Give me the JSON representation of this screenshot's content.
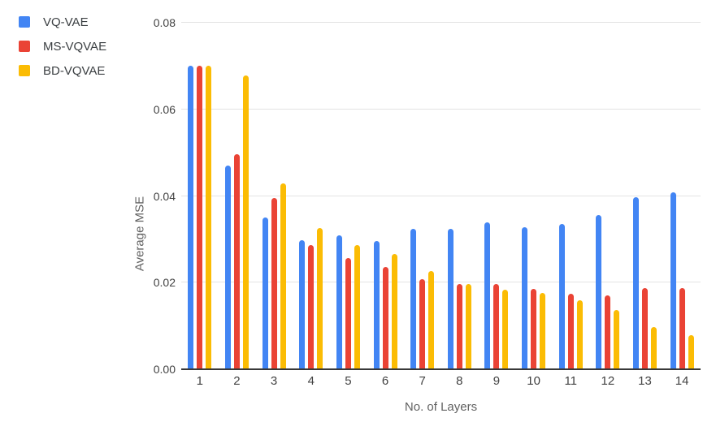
{
  "legend": {
    "items": [
      {
        "label": "VQ-VAE",
        "color": "#4285F4"
      },
      {
        "label": "MS-VQVAE",
        "color": "#EA4335"
      },
      {
        "label": "BD-VQVAE",
        "color": "#FBBC04"
      }
    ]
  },
  "chart_data": {
    "type": "bar",
    "title": "",
    "xlabel": "No. of Layers",
    "ylabel": "Average MSE",
    "categories": [
      "1",
      "2",
      "3",
      "4",
      "5",
      "6",
      "7",
      "8",
      "9",
      "10",
      "11",
      "12",
      "13",
      "14"
    ],
    "series": [
      {
        "name": "VQ-VAE",
        "color": "#4285F4",
        "values": [
          0.07,
          0.047,
          0.035,
          0.0297,
          0.031,
          0.0296,
          0.0325,
          0.0325,
          0.034,
          0.0327,
          0.0336,
          0.0356,
          0.0397,
          0.0408
        ]
      },
      {
        "name": "MS-VQVAE",
        "color": "#EA4335",
        "values": [
          0.07,
          0.0497,
          0.0396,
          0.0286,
          0.0256,
          0.0237,
          0.0208,
          0.0196,
          0.0197,
          0.0186,
          0.0175,
          0.0171,
          0.0188,
          0.0188
        ]
      },
      {
        "name": "BD-VQVAE",
        "color": "#FBBC04",
        "values": [
          0.07,
          0.0679,
          0.043,
          0.0326,
          0.0286,
          0.0266,
          0.0227,
          0.0196,
          0.0184,
          0.0176,
          0.0159,
          0.0137,
          0.0098,
          0.0079
        ]
      }
    ],
    "ylim": [
      0,
      0.08
    ],
    "yticks": [
      "0.00",
      "0.02",
      "0.04",
      "0.06",
      "0.08"
    ],
    "grid": true,
    "legend_position": "top-left",
    "colors": {
      "gridline": "#e3e3e3",
      "baseline": "#383838",
      "tick_label": "#424242",
      "axis_title": "#616161"
    }
  }
}
